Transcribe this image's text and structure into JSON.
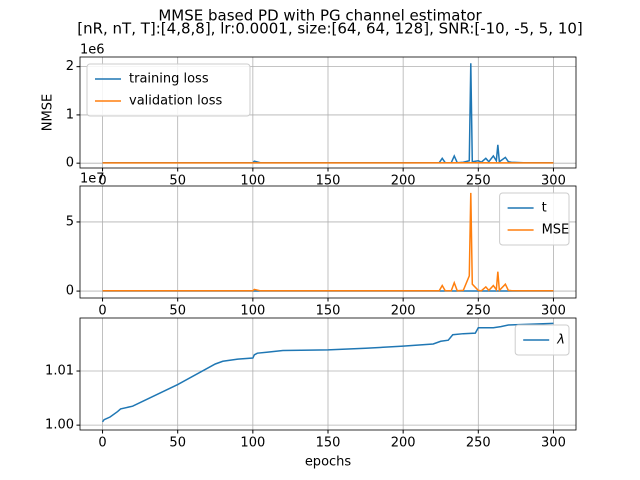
{
  "title": "MMSE based PD with PG channel estimator",
  "subtitle": "[nR, nT, T]:[4,8,8], lr:0.0001, size:[64, 64, 128], SNR:[-10, -5, 5, 10]",
  "chart_data": [
    {
      "type": "line",
      "y_label": "NMSE",
      "y_offset_label": "1e6",
      "grid": true,
      "legend": "upper-left",
      "xlim": [
        -15,
        315
      ],
      "xticks": [
        0,
        50,
        100,
        150,
        200,
        250,
        300
      ],
      "ylim": [
        -0.1,
        2.2
      ],
      "yticks": [
        0,
        1,
        2
      ],
      "series": [
        {
          "name": "training loss",
          "color": "#1f77b4",
          "x": [
            0,
            50,
            100,
            101,
            105,
            150,
            200,
            224,
            226,
            228,
            232,
            234,
            236,
            240,
            244,
            245,
            246,
            250,
            252,
            255,
            257,
            260,
            262,
            263,
            264,
            268,
            270,
            272,
            280,
            300
          ],
          "values": [
            0.01,
            0.01,
            0.01,
            0.04,
            0.01,
            0.01,
            0.01,
            0.01,
            0.1,
            0.01,
            0.01,
            0.15,
            0.01,
            0.02,
            0.05,
            2.07,
            0.03,
            0.05,
            0.02,
            0.1,
            0.03,
            0.15,
            0.05,
            0.38,
            0.03,
            0.12,
            0.03,
            0.02,
            0.01,
            0.01
          ]
        },
        {
          "name": "validation loss",
          "color": "#ff7f0e",
          "x": [
            0,
            100,
            200,
            245,
            300
          ],
          "values": [
            0.005,
            0.005,
            0.005,
            0.008,
            0.005
          ]
        }
      ]
    },
    {
      "type": "line",
      "y_offset_label": "1e7",
      "grid": true,
      "legend": "upper-right",
      "xlim": [
        -15,
        315
      ],
      "xticks": [
        0,
        50,
        100,
        150,
        200,
        250,
        300
      ],
      "ylim": [
        -0.5,
        7.6
      ],
      "yticks": [
        0,
        5
      ],
      "series": [
        {
          "name": "t",
          "color": "#1f77b4",
          "x": [
            0,
            100,
            200,
            300
          ],
          "values": [
            0.01,
            0.01,
            0.01,
            0.01
          ]
        },
        {
          "name": "MSE",
          "color": "#ff7f0e",
          "x": [
            0,
            50,
            100,
            101,
            105,
            150,
            200,
            224,
            226,
            228,
            232,
            234,
            236,
            240,
            244,
            245,
            246,
            250,
            252,
            255,
            257,
            260,
            262,
            263,
            264,
            268,
            270,
            272,
            280,
            300
          ],
          "values": [
            0.02,
            0.02,
            0.02,
            0.12,
            0.02,
            0.02,
            0.02,
            0.02,
            0.4,
            0.02,
            0.02,
            0.6,
            0.02,
            0.05,
            1.1,
            7.1,
            0.5,
            0.05,
            0.02,
            0.3,
            0.05,
            0.4,
            0.1,
            1.4,
            0.05,
            0.5,
            0.05,
            0.03,
            0.02,
            0.02
          ]
        }
      ]
    },
    {
      "type": "line",
      "x_label": "epochs",
      "grid": true,
      "legend": "upper-right",
      "xlim": [
        -15,
        315
      ],
      "xticks": [
        0,
        50,
        100,
        150,
        200,
        250,
        300
      ],
      "ylim": [
        0.9991,
        1.0198
      ],
      "yticks": [
        {
          "value": 1.0,
          "label": "1.00"
        },
        1.01
      ],
      "series": [
        {
          "name": "λ",
          "color": "#1f77b4",
          "x": [
            0,
            1,
            5,
            10,
            12,
            20,
            50,
            75,
            80,
            90,
            100,
            101,
            103,
            110,
            120,
            150,
            175,
            200,
            220,
            225,
            230,
            233,
            240,
            248,
            250,
            260,
            265,
            270,
            300
          ],
          "values": [
            1.0006,
            1.001,
            1.0015,
            1.0025,
            1.003,
            1.0035,
            1.0075,
            1.0113,
            1.0118,
            1.0122,
            1.0124,
            1.013,
            1.0133,
            1.0135,
            1.0138,
            1.0139,
            1.0142,
            1.0146,
            1.015,
            1.0155,
            1.0157,
            1.0167,
            1.0169,
            1.017,
            1.018,
            1.018,
            1.0182,
            1.0185,
            1.0188
          ]
        }
      ]
    }
  ]
}
